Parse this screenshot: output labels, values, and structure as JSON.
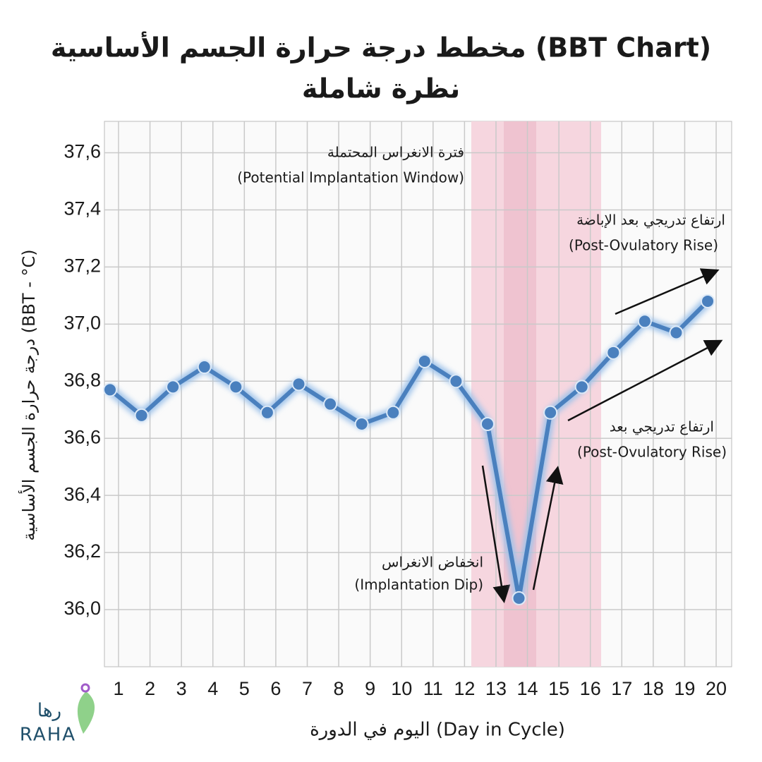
{
  "chart_data": {
    "type": "line",
    "title": "مخطط درجة حرارة الجسم الأساسية (BBT Chart)",
    "subtitle": "نظرة شاملة",
    "y_label": "درجة حرارة الجسم الأساسية (BBT - °C)",
    "x_label": "اليوم في الدورة (Day in Cycle)",
    "categories": [
      "1",
      "2",
      "3",
      "4",
      "5",
      "6",
      "7",
      "8",
      "9",
      "10",
      "11",
      "12",
      "13",
      "14",
      "15",
      "16",
      "17",
      "18",
      "19",
      "20"
    ],
    "values": [
      36.77,
      36.68,
      36.78,
      36.85,
      36.78,
      36.69,
      36.79,
      36.72,
      36.65,
      36.69,
      36.87,
      36.8,
      36.65,
      36.04,
      36.69,
      36.78,
      36.9,
      37.01,
      36.97,
      37.08
    ],
    "color": "#4a80be",
    "ylim": [
      35.8,
      37.71
    ],
    "yticks": [
      {
        "value": 36.0,
        "label": "36,0"
      },
      {
        "value": 36.2,
        "label": "36,2"
      },
      {
        "value": 36.4,
        "label": "36,4"
      },
      {
        "value": 36.6,
        "label": "36,6"
      },
      {
        "value": 36.8,
        "label": "36,8"
      },
      {
        "value": 37.0,
        "label": "37,0"
      },
      {
        "value": 37.2,
        "label": "37,2"
      },
      {
        "value": 37.4,
        "label": "37,4"
      },
      {
        "value": 37.6,
        "label": "37,6"
      }
    ],
    "grid": true,
    "annotations": {
      "window_ar": "فترة الانغراس المحتملة",
      "window_en": "(Potential Implantation Window)",
      "dip_ar": "انخفاض الانغراس",
      "dip_en": "(Implantation Dip)",
      "rise1_ar": "ارتفاع تدريجي بعد الإباضة",
      "rise1_en": "(Post-Ovulatory Rise)",
      "rise2_ar": "ارتفاع تدريجي بعد",
      "rise2_en": "(Post-Ovulatory Rise)"
    },
    "logo": {
      "ar": "رها",
      "en": "RAHA"
    }
  }
}
